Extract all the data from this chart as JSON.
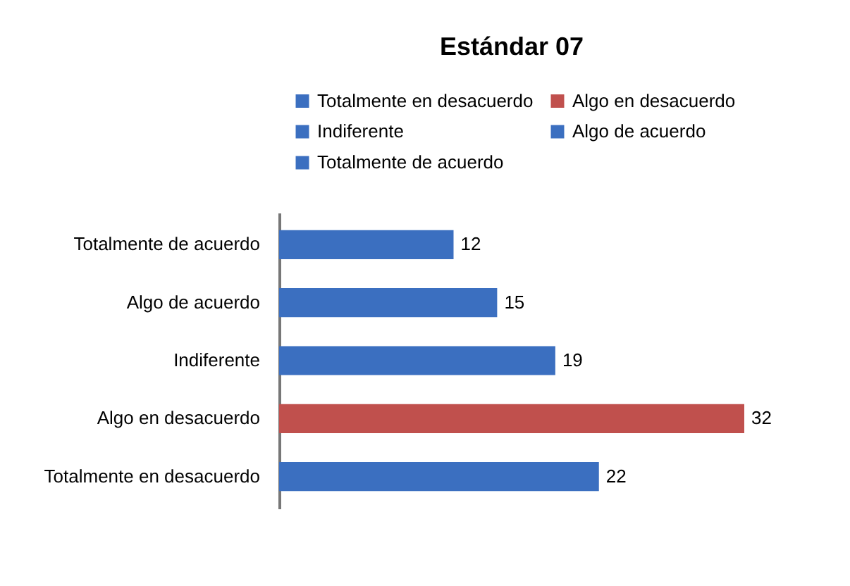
{
  "chart_data": {
    "type": "bar",
    "orientation": "horizontal",
    "title": "Estándar 07",
    "categories": [
      "Totalmente de acuerdo",
      "Algo de acuerdo",
      "Indiferente",
      "Algo en desacuerdo",
      "Totalmente en desacuerdo"
    ],
    "series": [
      {
        "name": "Totalmente en desacuerdo",
        "color": "#3b6fc0",
        "values": [
          null,
          null,
          null,
          null,
          22
        ]
      },
      {
        "name": "Algo en desacuerdo",
        "color": "#c0504d",
        "values": [
          null,
          null,
          null,
          32,
          null
        ]
      },
      {
        "name": "Indiferente",
        "color": "#3b6fc0",
        "values": [
          null,
          null,
          19,
          null,
          null
        ]
      },
      {
        "name": "Algo de acuerdo",
        "color": "#3b6fc0",
        "values": [
          null,
          15,
          null,
          null,
          null
        ]
      },
      {
        "name": "Totalmente de acuerdo",
        "color": "#3b6fc0",
        "values": [
          12,
          null,
          null,
          null,
          null
        ]
      }
    ],
    "data_labels": true,
    "legend": "top",
    "grid": false,
    "tick_labels": "y"
  }
}
